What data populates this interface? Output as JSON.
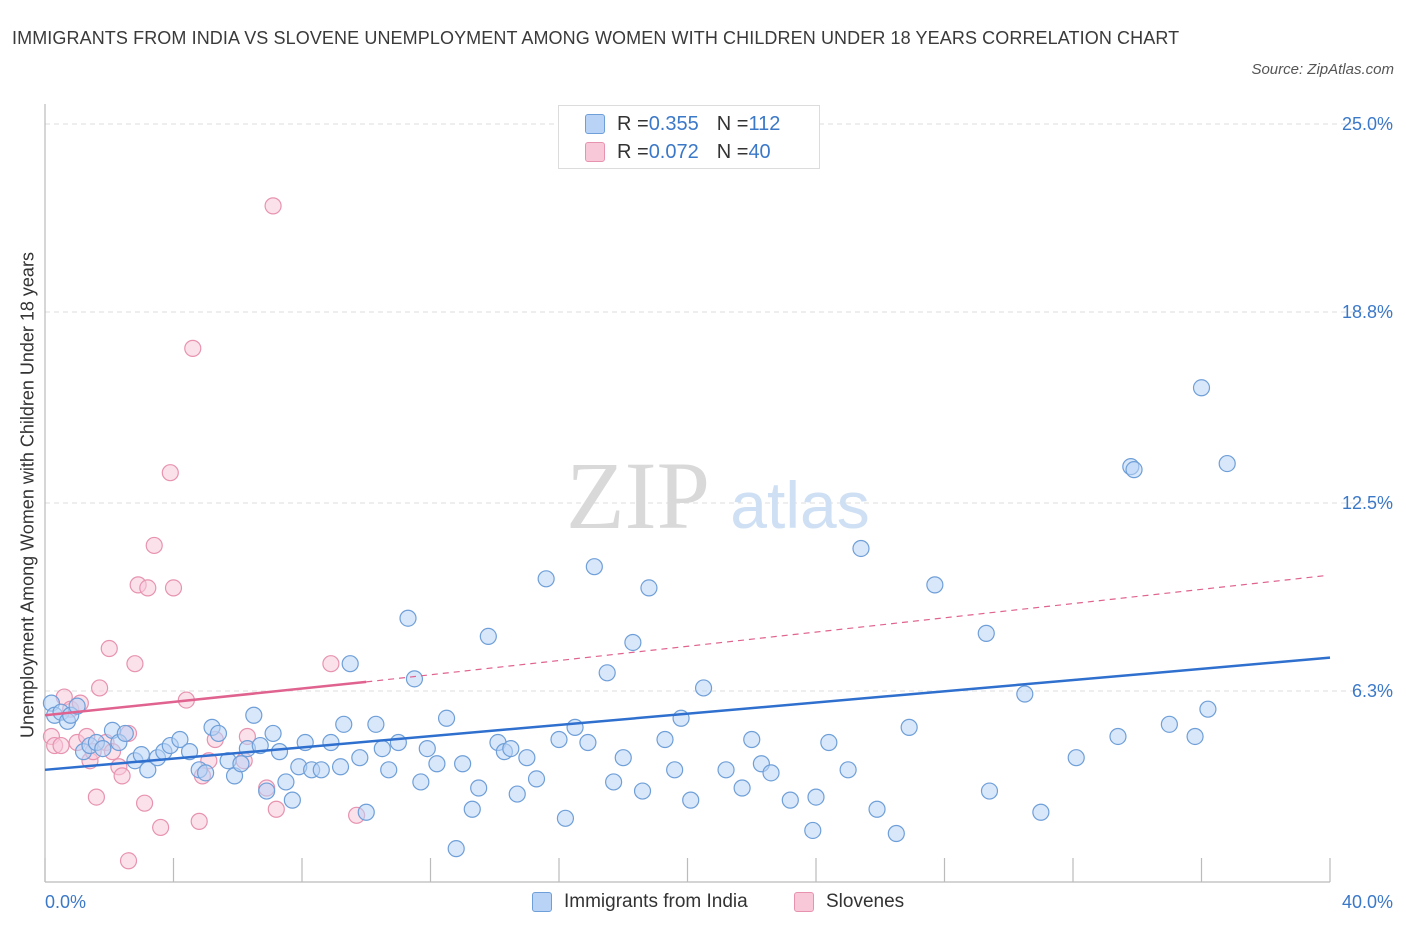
{
  "title": "IMMIGRANTS FROM INDIA VS SLOVENE UNEMPLOYMENT AMONG WOMEN WITH CHILDREN UNDER 18 YEARS CORRELATION CHART",
  "source": "Source: ZipAtlas.com",
  "watermark": {
    "zip": "ZIP",
    "atlas": "atlas"
  },
  "legend": {
    "rows": [
      {
        "r_label": "R = ",
        "r_value": "0.355",
        "n_label": "N = ",
        "n_value": "112"
      },
      {
        "r_label": "R = ",
        "r_value": "0.072",
        "n_label": "N = ",
        "n_value": "40"
      }
    ]
  },
  "colors": {
    "india_fill": "#b8d3f5",
    "india_stroke": "#6f9fd8",
    "india_line": "#2f6fce",
    "slovene_fill": "#f8c8d8",
    "slovene_stroke": "#e793b0",
    "slovene_line": "#e0628f",
    "axis_label": "#3b78c8",
    "grid": "#dddddd"
  },
  "chart_data": {
    "type": "scatter",
    "title": "IMMIGRANTS FROM INDIA VS SLOVENE UNEMPLOYMENT AMONG WOMEN WITH CHILDREN UNDER 18 YEARS CORRELATION CHART",
    "xlabel": "",
    "ylabel": "Unemployment Among Women with Children Under 18 years",
    "xlim": [
      0,
      40
    ],
    "ylim": [
      0,
      25
    ],
    "x_tick_labels": [
      {
        "value": 0,
        "label": "0.0%"
      },
      {
        "value": 40,
        "label": "40.0%"
      }
    ],
    "y_tick_labels": [
      {
        "value": 6.3,
        "label": "6.3%"
      },
      {
        "value": 12.5,
        "label": "12.5%"
      },
      {
        "value": 18.8,
        "label": "18.8%"
      },
      {
        "value": 25.0,
        "label": "25.0%"
      }
    ],
    "grid": true,
    "legend_position": "top-center",
    "series": [
      {
        "name": "Immigrants from India",
        "r": 0.355,
        "n": 112,
        "trend": {
          "x": [
            0,
            40
          ],
          "y": [
            3.7,
            7.4
          ]
        },
        "points": [
          [
            0.2,
            5.9
          ],
          [
            0.3,
            5.5
          ],
          [
            0.5,
            5.6
          ],
          [
            0.7,
            5.3
          ],
          [
            0.8,
            5.5
          ],
          [
            1.0,
            5.8
          ],
          [
            1.2,
            4.3
          ],
          [
            1.4,
            4.5
          ],
          [
            1.6,
            4.6
          ],
          [
            1.8,
            4.4
          ],
          [
            2.1,
            5.0
          ],
          [
            2.3,
            4.6
          ],
          [
            2.5,
            4.9
          ],
          [
            2.8,
            4.0
          ],
          [
            3.0,
            4.2
          ],
          [
            3.2,
            3.7
          ],
          [
            3.5,
            4.1
          ],
          [
            3.7,
            4.3
          ],
          [
            3.9,
            4.5
          ],
          [
            4.2,
            4.7
          ],
          [
            4.5,
            4.3
          ],
          [
            4.8,
            3.7
          ],
          [
            5.0,
            3.6
          ],
          [
            5.2,
            5.1
          ],
          [
            5.4,
            4.9
          ],
          [
            5.7,
            4.0
          ],
          [
            5.9,
            3.5
          ],
          [
            6.1,
            3.9
          ],
          [
            6.3,
            4.4
          ],
          [
            6.5,
            5.5
          ],
          [
            6.7,
            4.5
          ],
          [
            6.9,
            3.0
          ],
          [
            7.1,
            4.9
          ],
          [
            7.3,
            4.3
          ],
          [
            7.5,
            3.3
          ],
          [
            7.7,
            2.7
          ],
          [
            7.9,
            3.8
          ],
          [
            8.1,
            4.6
          ],
          [
            8.3,
            3.7
          ],
          [
            8.6,
            3.7
          ],
          [
            8.9,
            4.6
          ],
          [
            9.2,
            3.8
          ],
          [
            9.3,
            5.2
          ],
          [
            9.5,
            7.2
          ],
          [
            9.8,
            4.1
          ],
          [
            10.0,
            2.3
          ],
          [
            10.3,
            5.2
          ],
          [
            10.5,
            4.4
          ],
          [
            10.7,
            3.7
          ],
          [
            11.0,
            4.6
          ],
          [
            11.3,
            8.7
          ],
          [
            11.5,
            6.7
          ],
          [
            11.7,
            3.3
          ],
          [
            11.9,
            4.4
          ],
          [
            12.2,
            3.9
          ],
          [
            12.5,
            5.4
          ],
          [
            12.8,
            1.1
          ],
          [
            13.0,
            3.9
          ],
          [
            13.3,
            2.4
          ],
          [
            13.5,
            3.1
          ],
          [
            13.8,
            8.1
          ],
          [
            14.1,
            4.6
          ],
          [
            14.3,
            4.3
          ],
          [
            14.5,
            4.4
          ],
          [
            14.7,
            2.9
          ],
          [
            15.0,
            4.1
          ],
          [
            15.3,
            3.4
          ],
          [
            15.6,
            10.0
          ],
          [
            16.0,
            4.7
          ],
          [
            16.2,
            2.1
          ],
          [
            16.5,
            5.1
          ],
          [
            16.9,
            4.6
          ],
          [
            17.1,
            10.4
          ],
          [
            17.5,
            6.9
          ],
          [
            17.7,
            3.3
          ],
          [
            18.0,
            4.1
          ],
          [
            18.3,
            7.9
          ],
          [
            18.6,
            3.0
          ],
          [
            18.8,
            9.7
          ],
          [
            19.3,
            4.7
          ],
          [
            19.6,
            3.7
          ],
          [
            19.8,
            5.4
          ],
          [
            20.1,
            2.7
          ],
          [
            20.5,
            6.4
          ],
          [
            21.2,
            3.7
          ],
          [
            21.7,
            3.1
          ],
          [
            22.0,
            4.7
          ],
          [
            22.3,
            3.9
          ],
          [
            22.6,
            3.6
          ],
          [
            23.2,
            2.7
          ],
          [
            23.9,
            1.7
          ],
          [
            24.0,
            2.8
          ],
          [
            24.4,
            4.6
          ],
          [
            25.0,
            3.7
          ],
          [
            25.4,
            11.0
          ],
          [
            25.9,
            2.4
          ],
          [
            26.5,
            1.6
          ],
          [
            26.9,
            5.1
          ],
          [
            27.7,
            9.8
          ],
          [
            29.3,
            8.2
          ],
          [
            29.4,
            3.0
          ],
          [
            30.5,
            6.2
          ],
          [
            31.0,
            2.3
          ],
          [
            32.1,
            4.1
          ],
          [
            33.4,
            4.8
          ],
          [
            33.8,
            13.7
          ],
          [
            33.9,
            13.6
          ],
          [
            35.0,
            5.2
          ],
          [
            35.8,
            4.8
          ],
          [
            36.0,
            16.3
          ],
          [
            36.2,
            5.7
          ],
          [
            36.8,
            13.8
          ]
        ]
      },
      {
        "name": "Slovenes",
        "r": 0.072,
        "n": 40,
        "trend": {
          "x": [
            0,
            10
          ],
          "y": [
            5.5,
            6.6
          ],
          "dashed_to": {
            "x": 40,
            "y": 10.1
          }
        },
        "points": [
          [
            0.2,
            4.8
          ],
          [
            0.3,
            4.5
          ],
          [
            0.5,
            4.5
          ],
          [
            0.6,
            6.1
          ],
          [
            0.8,
            5.7
          ],
          [
            1.0,
            4.6
          ],
          [
            1.1,
            5.9
          ],
          [
            1.3,
            4.8
          ],
          [
            1.4,
            4.0
          ],
          [
            1.5,
            4.3
          ],
          [
            1.6,
            2.8
          ],
          [
            1.7,
            6.4
          ],
          [
            1.9,
            4.6
          ],
          [
            2.0,
            7.7
          ],
          [
            2.1,
            4.3
          ],
          [
            2.3,
            3.8
          ],
          [
            2.4,
            3.5
          ],
          [
            2.6,
            4.9
          ],
          [
            2.6,
            0.7
          ],
          [
            2.8,
            7.2
          ],
          [
            2.9,
            9.8
          ],
          [
            3.1,
            2.6
          ],
          [
            3.2,
            9.7
          ],
          [
            3.4,
            11.1
          ],
          [
            3.6,
            1.8
          ],
          [
            3.9,
            13.5
          ],
          [
            4.0,
            9.7
          ],
          [
            4.4,
            6.0
          ],
          [
            4.6,
            17.6
          ],
          [
            4.8,
            2.0
          ],
          [
            4.9,
            3.5
          ],
          [
            5.1,
            4.0
          ],
          [
            5.3,
            4.7
          ],
          [
            6.2,
            4.0
          ],
          [
            6.3,
            4.8
          ],
          [
            6.9,
            3.1
          ],
          [
            7.1,
            22.3
          ],
          [
            7.2,
            2.4
          ],
          [
            8.9,
            7.2
          ],
          [
            9.7,
            2.2
          ]
        ]
      }
    ]
  },
  "bottom_legend": [
    {
      "label": "Immigrants from India"
    },
    {
      "label": "Slovenes"
    }
  ]
}
